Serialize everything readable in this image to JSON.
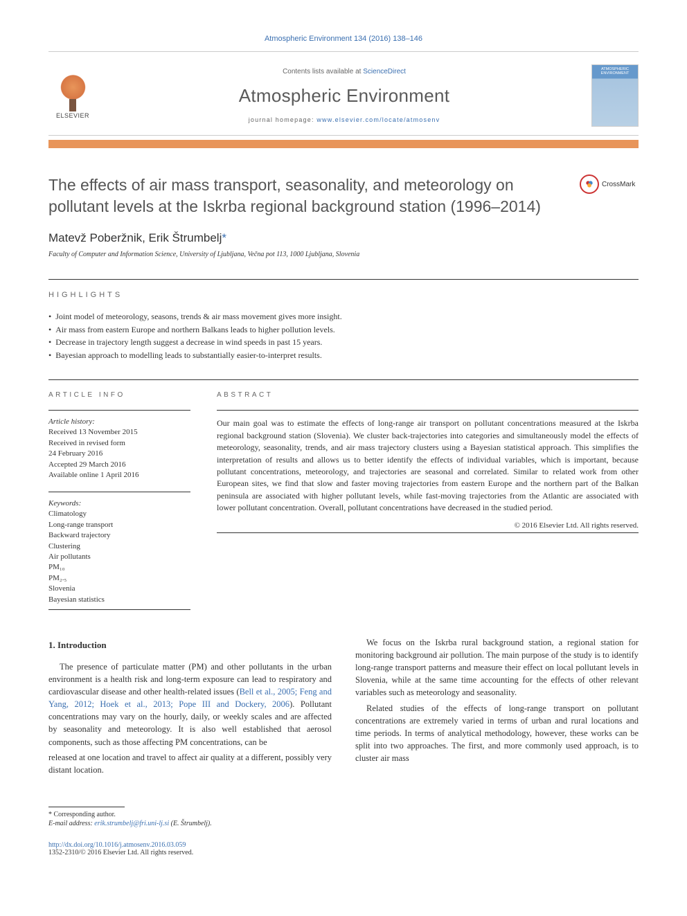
{
  "journal_ref": "Atmospheric Environment 134 (2016) 138–146",
  "header": {
    "lists_text": "Contents lists available at ",
    "lists_link": "ScienceDirect",
    "journal_name": "Atmospheric Environment",
    "homepage_text": "journal homepage: ",
    "homepage_link": "www.elsevier.com/locate/atmosenv",
    "publisher": "ELSEVIER",
    "cover_label": "ATMOSPHERIC ENVIRONMENT"
  },
  "crossmark_label": "CrossMark",
  "title": "The effects of air mass transport, seasonality, and meteorology on pollutant levels at the Iskrba regional background station (1996–2014)",
  "authors": "Matevž Poberžnik, Erik Štrumbelj",
  "corresponding_marker": "*",
  "affiliation": "Faculty of Computer and Information Science, University of Ljubljana, Večna pot 113, 1000 Ljubljana, Slovenia",
  "highlights_label": "HIGHLIGHTS",
  "highlights": [
    "Joint model of meteorology, seasons, trends & air mass movement gives more insight.",
    "Air mass from eastern Europe and northern Balkans leads to higher pollution levels.",
    "Decrease in trajectory length suggest a decrease in wind speeds in past 15 years.",
    "Bayesian approach to modelling leads to substantially easier-to-interpret results."
  ],
  "article_info": {
    "label": "ARTICLE INFO",
    "history_label": "Article history:",
    "history": [
      "Received 13 November 2015",
      "Received in revised form",
      "24 February 2016",
      "Accepted 29 March 2016",
      "Available online 1 April 2016"
    ],
    "keywords_label": "Keywords:",
    "keywords": [
      "Climatology",
      "Long-range transport",
      "Backward trajectory",
      "Clustering",
      "Air pollutants",
      "PM₁₀",
      "PM₂.₅",
      "Slovenia",
      "Bayesian statistics"
    ]
  },
  "abstract": {
    "label": "ABSTRACT",
    "text": "Our main goal was to estimate the effects of long-range air transport on pollutant concentrations measured at the Iskrba regional background station (Slovenia). We cluster back-trajectories into categories and simultaneously model the effects of meteorology, seasonality, trends, and air mass trajectory clusters using a Bayesian statistical approach. This simplifies the interpretation of results and allows us to better identify the effects of individual variables, which is important, because pollutant concentrations, meteorology, and trajectories are seasonal and correlated. Similar to related work from other European sites, we find that slow and faster moving trajectories from eastern Europe and the northern part of the Balkan peninsula are associated with higher pollutant levels, while fast-moving trajectories from the Atlantic are associated with lower pollutant concentration. Overall, pollutant concentrations have decreased in the studied period.",
    "copyright": "© 2016 Elsevier Ltd. All rights reserved."
  },
  "intro": {
    "heading": "1. Introduction",
    "p1_a": "The presence of particulate matter (PM) and other pollutants in the urban environment is a health risk and long-term exposure can lead to respiratory and cardiovascular disease and other health-related issues (",
    "p1_cite": "Bell et al., 2005; Feng and Yang, 2012; Hoek et al., 2013; Pope III and Dockery, 2006",
    "p1_b": "). Pollutant concentrations may vary on the hourly, daily, or weekly scales and are affected by seasonality and meteorology. It is also well established that aerosol components, such as those affecting PM concentrations, can be",
    "p2": "released at one location and travel to affect air quality at a different, possibly very distant location.",
    "p3": "We focus on the Iskrba rural background station, a regional station for monitoring background air pollution. The main purpose of the study is to identify long-range transport patterns and measure their effect on local pollutant levels in Slovenia, while at the same time accounting for the effects of other relevant variables such as meteorology and seasonality.",
    "p4": "Related studies of the effects of long-range transport on pollutant concentrations are extremely varied in terms of urban and rural locations and time periods. In terms of analytical methodology, however, these works can be split into two approaches. The first, and more commonly used approach, is to cluster air mass"
  },
  "footer": {
    "corr_label": "* Corresponding author.",
    "email_label": "E-mail address: ",
    "email": "erik.strumbelj@fri.uni-lj.si",
    "email_author": " (E. Štrumbelj).",
    "doi": "http://dx.doi.org/10.1016/j.atmosenv.2016.03.059",
    "issn": "1352-2310/© 2016 Elsevier Ltd. All rights reserved."
  },
  "colors": {
    "link": "#3a6fb0",
    "orange_bar": "#e8955a",
    "text": "#333333",
    "muted": "#666666",
    "crossmark_ring": "#cc3333"
  }
}
